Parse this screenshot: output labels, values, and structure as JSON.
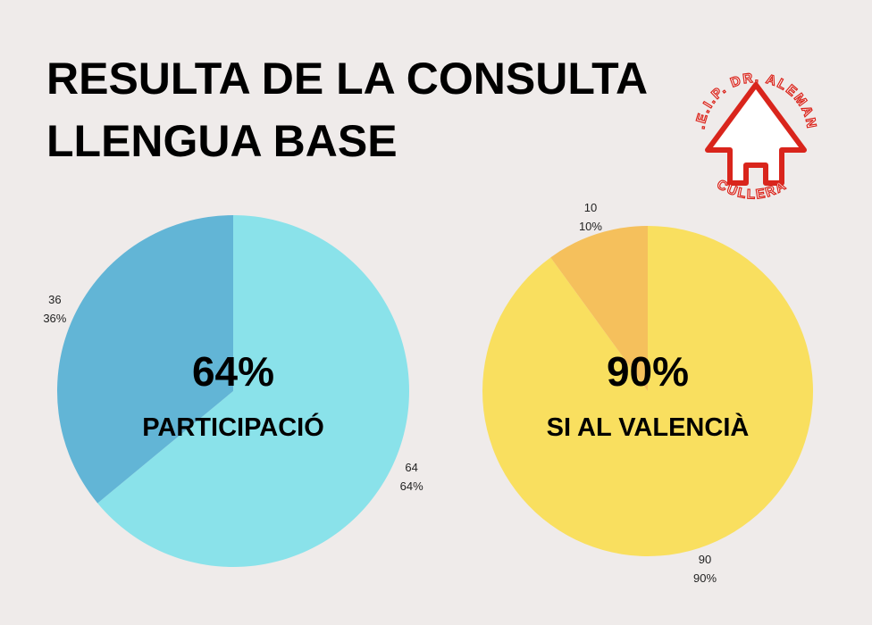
{
  "header": {
    "title_lines": [
      "RESULTA DE LA CONSULTA",
      "LLENGUA BASE"
    ]
  },
  "logo": {
    "top_text": "C.E.I.P. DR. ALEMANY",
    "bottom_text": "CULLERA"
  },
  "chart_data": [
    {
      "type": "pie",
      "values": [
        64,
        36
      ],
      "value_labels": [
        "64%",
        "36%"
      ],
      "colors": [
        "#8ae2ea",
        "#62b5d6"
      ],
      "center_value": "64%",
      "center_label": "PARTICIPACIÓ"
    },
    {
      "type": "pie",
      "values": [
        90,
        10
      ],
      "value_labels": [
        "90%",
        "10%"
      ],
      "colors": [
        "#f9df5f",
        "#f5c05c"
      ],
      "center_value": "90%",
      "center_label": "SI AL VALENCIÀ"
    }
  ]
}
